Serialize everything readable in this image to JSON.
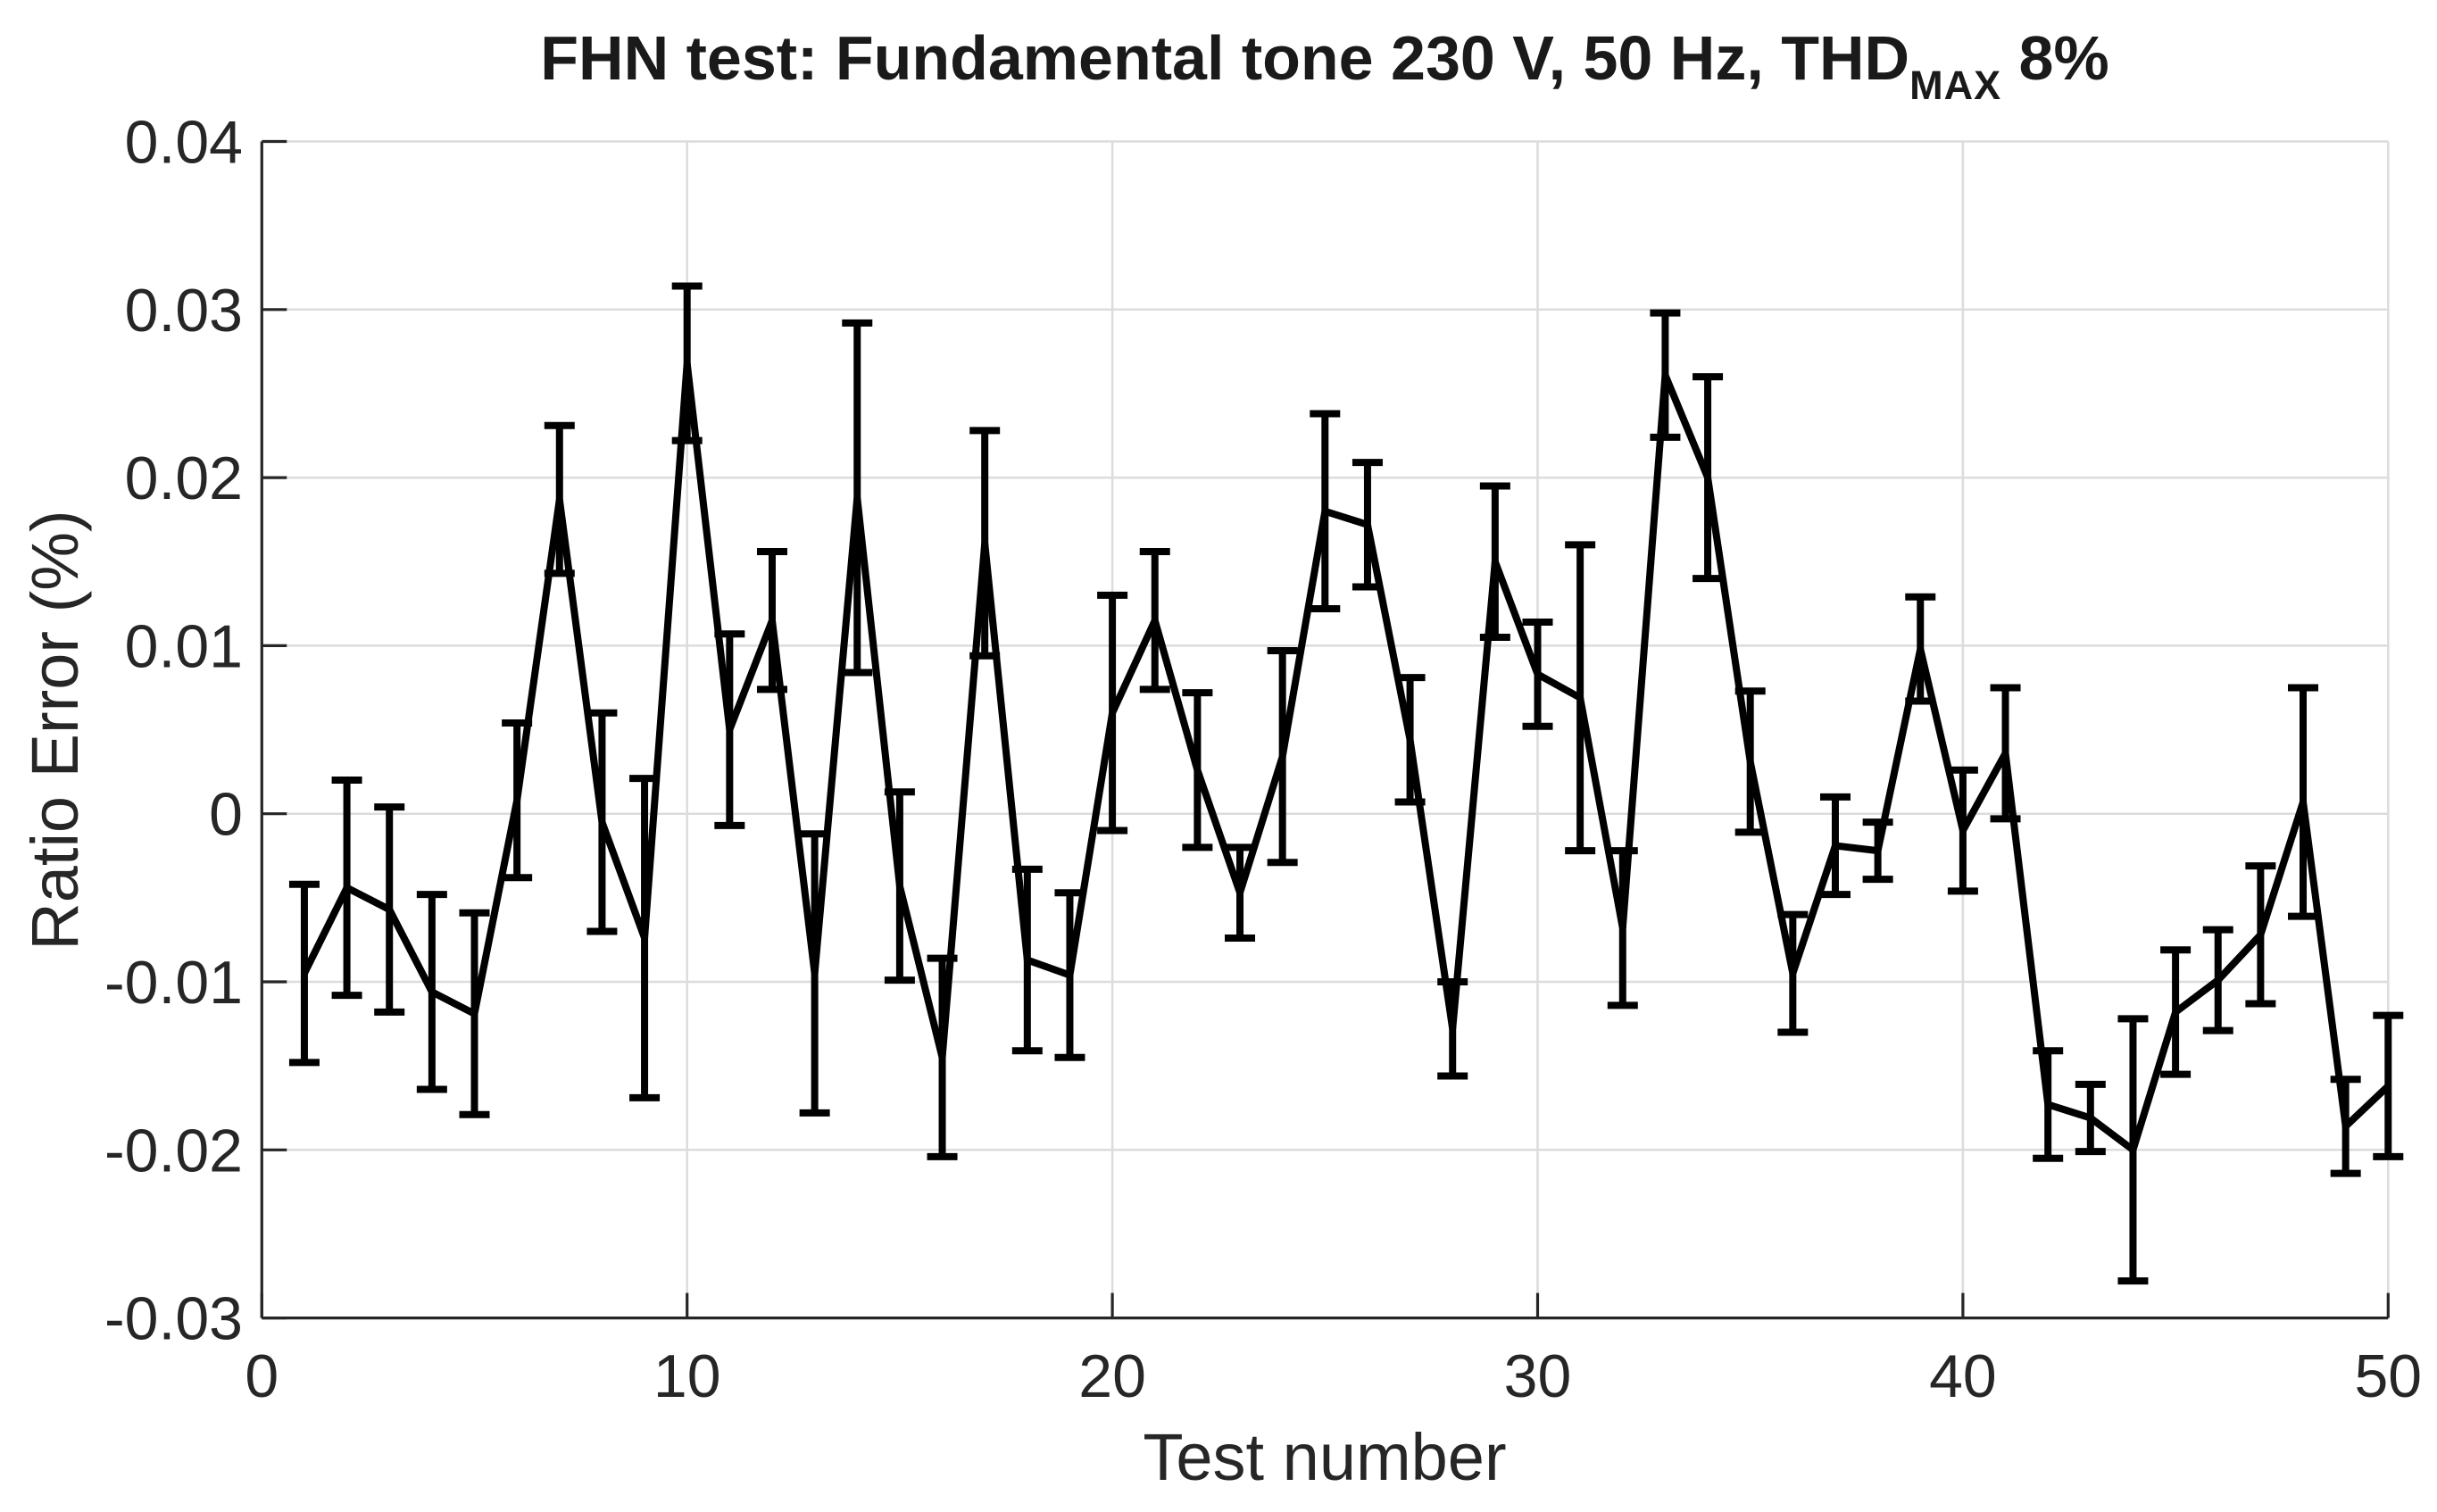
{
  "figure": {
    "title": {
      "main": "FHN test: Fundamental tone 230 V, 50 Hz, THD",
      "subscript": "MAX",
      "suffix": " 8%"
    }
  },
  "axes": {
    "xlabel": "Test number",
    "ylabel": "Ratio Error (%)",
    "xlim": [
      0,
      50
    ],
    "ylim": [
      -0.03,
      0.04
    ],
    "xticks": [
      0,
      10,
      20,
      30,
      40,
      50
    ],
    "xtick_labels": [
      "0",
      "10",
      "20",
      "30",
      "40",
      "50"
    ],
    "yticks": [
      -0.03,
      -0.02,
      -0.01,
      0,
      0.01,
      0.02,
      0.03,
      0.04
    ],
    "ytick_labels": [
      "-0.03",
      "-0.02",
      "-0.01",
      "0",
      "0.01",
      "0.02",
      "0.03",
      "0.04"
    ],
    "grid": true,
    "legend": "none"
  },
  "colors": {
    "line": "#000000",
    "axis": "#262626",
    "grid": "#dcdcdc",
    "background": "#ffffff",
    "text": "#262626"
  },
  "chart_data": {
    "type": "line",
    "style": "errorbar",
    "title": "FHN test: Fundamental tone 230 V, 50 Hz, THD_MAX 8%",
    "xlabel": "Test number",
    "ylabel": "Ratio Error (%)",
    "xlim": [
      0,
      50
    ],
    "ylim": [
      -0.03,
      0.04
    ],
    "x": [
      1,
      2,
      3,
      4,
      5,
      6,
      7,
      8,
      9,
      10,
      11,
      12,
      13,
      14,
      15,
      16,
      17,
      18,
      19,
      20,
      21,
      22,
      23,
      24,
      25,
      26,
      27,
      28,
      29,
      30,
      31,
      32,
      33,
      34,
      35,
      36,
      37,
      38,
      39,
      40,
      41,
      42,
      43,
      44,
      45,
      46,
      47,
      48,
      49,
      50
    ],
    "y": [
      -0.0095,
      -0.0044,
      -0.0057,
      -0.0106,
      -0.0119,
      0.0008,
      0.0187,
      -0.0005,
      -0.0074,
      0.0268,
      0.005,
      0.0115,
      -0.0095,
      0.0188,
      -0.0043,
      -0.0145,
      0.0161,
      -0.0087,
      -0.0096,
      0.006,
      0.0115,
      0.0026,
      -0.0047,
      0.0034,
      0.018,
      0.0172,
      0.0044,
      -0.0128,
      0.015,
      0.0083,
      0.0069,
      -0.0068,
      0.0261,
      0.02,
      0.0031,
      -0.0095,
      -0.0019,
      -0.0022,
      0.0098,
      -0.001,
      0.0036,
      -0.0173,
      -0.0181,
      -0.02,
      -0.0118,
      -0.0099,
      -0.0072,
      0.0007,
      -0.0186,
      -0.0162
    ],
    "yerr": [
      0.0053,
      0.0064,
      0.0061,
      0.0058,
      0.006,
      0.0046,
      0.0044,
      0.0065,
      0.0095,
      0.0046,
      0.0057,
      0.0041,
      0.0083,
      0.0104,
      0.0056,
      0.0059,
      0.0067,
      0.0054,
      0.0049,
      0.007,
      0.0041,
      0.0046,
      0.0027,
      0.0063,
      0.0058,
      0.0037,
      0.0037,
      0.0028,
      0.0045,
      0.0031,
      0.0091,
      0.0046,
      0.0037,
      0.006,
      0.0042,
      0.0035,
      0.0029,
      0.0017,
      0.0031,
      0.0036,
      0.0039,
      0.0032,
      0.002,
      0.0078,
      0.0037,
      0.003,
      0.0041,
      0.0068,
      0.0028,
      0.0042
    ]
  }
}
